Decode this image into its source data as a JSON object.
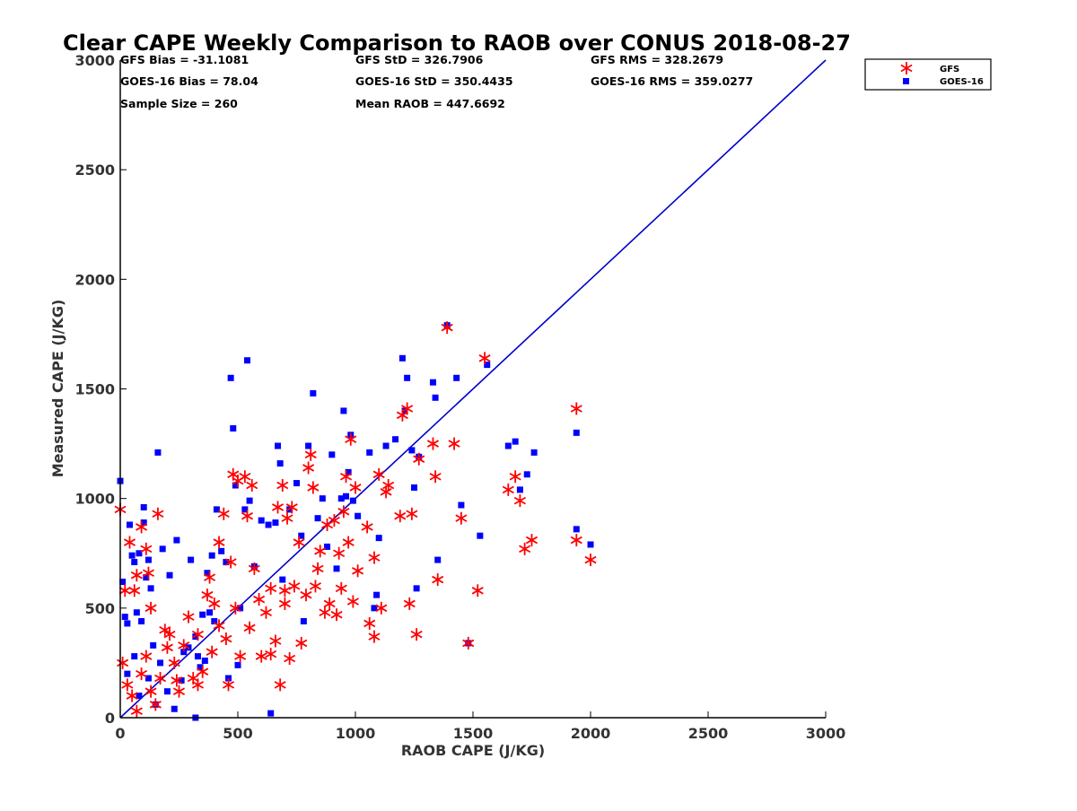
{
  "chart_data": {
    "type": "scatter",
    "title": "Clear CAPE Weekly Comparison to RAOB over CONUS 2018-08-27",
    "xlabel": "RAOB CAPE (J/KG)",
    "ylabel": "Measured CAPE (J/KG)",
    "xlim": [
      0,
      3000
    ],
    "ylim": [
      0,
      3000
    ],
    "xticks": [
      "0",
      "500",
      "1000",
      "1500",
      "2000",
      "2500",
      "3000"
    ],
    "yticks": [
      "0",
      "500",
      "1000",
      "1500",
      "2000",
      "2500",
      "3000"
    ],
    "grid": false,
    "legend_position": "top-right",
    "stats": [
      "GFS Bias = -31.1081",
      "GFS StD = 326.7906",
      "GFS RMS = 328.2679",
      "GOES-16 Bias = 78.04",
      "GOES-16 StD = 350.4435",
      "GOES-16 RMS = 359.0277",
      "Sample Size = 260",
      "Mean RAOB = 447.6692"
    ],
    "reference_line": {
      "x": [
        0,
        3000
      ],
      "y": [
        0,
        3000
      ],
      "color": "#0000cc"
    },
    "series": [
      {
        "name": "GFS",
        "marker": "asterisk",
        "color": "#ff0000",
        "points": [
          [
            0,
            950
          ],
          [
            20,
            580
          ],
          [
            40,
            800
          ],
          [
            60,
            580
          ],
          [
            70,
            650
          ],
          [
            90,
            870
          ],
          [
            110,
            770
          ],
          [
            120,
            660
          ],
          [
            130,
            500
          ],
          [
            160,
            930
          ],
          [
            10,
            250
          ],
          [
            30,
            150
          ],
          [
            50,
            100
          ],
          [
            70,
            30
          ],
          [
            90,
            200
          ],
          [
            110,
            280
          ],
          [
            130,
            120
          ],
          [
            150,
            60
          ],
          [
            170,
            180
          ],
          [
            190,
            400
          ],
          [
            210,
            380
          ],
          [
            230,
            250
          ],
          [
            250,
            120
          ],
          [
            270,
            330
          ],
          [
            290,
            460
          ],
          [
            310,
            180
          ],
          [
            330,
            150
          ],
          [
            350,
            210
          ],
          [
            370,
            560
          ],
          [
            390,
            300
          ],
          [
            400,
            520
          ],
          [
            420,
            800
          ],
          [
            440,
            930
          ],
          [
            450,
            360
          ],
          [
            460,
            150
          ],
          [
            470,
            710
          ],
          [
            480,
            1110
          ],
          [
            490,
            500
          ],
          [
            500,
            1080
          ],
          [
            510,
            280
          ],
          [
            530,
            1100
          ],
          [
            540,
            920
          ],
          [
            550,
            410
          ],
          [
            570,
            680
          ],
          [
            590,
            540
          ],
          [
            600,
            280
          ],
          [
            620,
            480
          ],
          [
            640,
            290
          ],
          [
            660,
            350
          ],
          [
            670,
            960
          ],
          [
            680,
            150
          ],
          [
            690,
            1060
          ],
          [
            700,
            580
          ],
          [
            710,
            910
          ],
          [
            720,
            270
          ],
          [
            730,
            960
          ],
          [
            740,
            600
          ],
          [
            760,
            800
          ],
          [
            770,
            340
          ],
          [
            790,
            560
          ],
          [
            800,
            1140
          ],
          [
            810,
            1200
          ],
          [
            820,
            1050
          ],
          [
            830,
            600
          ],
          [
            840,
            680
          ],
          [
            850,
            760
          ],
          [
            870,
            480
          ],
          [
            880,
            880
          ],
          [
            890,
            520
          ],
          [
            910,
            900
          ],
          [
            920,
            470
          ],
          [
            930,
            750
          ],
          [
            940,
            590
          ],
          [
            950,
            940
          ],
          [
            960,
            1100
          ],
          [
            970,
            800
          ],
          [
            980,
            1270
          ],
          [
            990,
            530
          ],
          [
            1000,
            1050
          ],
          [
            1010,
            670
          ],
          [
            1050,
            870
          ],
          [
            1060,
            430
          ],
          [
            1080,
            730
          ],
          [
            1080,
            370
          ],
          [
            1100,
            1110
          ],
          [
            1110,
            500
          ],
          [
            1130,
            1030
          ],
          [
            1140,
            1060
          ],
          [
            1190,
            920
          ],
          [
            1200,
            1380
          ],
          [
            1220,
            1410
          ],
          [
            1230,
            520
          ],
          [
            1240,
            930
          ],
          [
            1260,
            380
          ],
          [
            1270,
            1180
          ],
          [
            1330,
            1250
          ],
          [
            1340,
            1100
          ],
          [
            1350,
            630
          ],
          [
            1390,
            1780
          ],
          [
            1420,
            1250
          ],
          [
            1450,
            910
          ],
          [
            1480,
            340
          ],
          [
            1520,
            580
          ],
          [
            1550,
            1640
          ],
          [
            1650,
            1040
          ],
          [
            1680,
            1100
          ],
          [
            1700,
            990
          ],
          [
            1720,
            770
          ],
          [
            1750,
            810
          ],
          [
            1940,
            1410
          ],
          [
            1940,
            810
          ],
          [
            2000,
            720
          ],
          [
            200,
            320
          ],
          [
            240,
            170
          ],
          [
            330,
            380
          ],
          [
            380,
            640
          ],
          [
            420,
            420
          ],
          [
            560,
            1060
          ],
          [
            640,
            590
          ],
          [
            700,
            520
          ]
        ]
      },
      {
        "name": "GOES-16",
        "marker": "square",
        "color": "#0000ff",
        "points": [
          [
            0,
            1080
          ],
          [
            10,
            620
          ],
          [
            20,
            460
          ],
          [
            30,
            430
          ],
          [
            40,
            880
          ],
          [
            50,
            740
          ],
          [
            60,
            710
          ],
          [
            70,
            480
          ],
          [
            80,
            750
          ],
          [
            90,
            440
          ],
          [
            100,
            890
          ],
          [
            100,
            960
          ],
          [
            110,
            640
          ],
          [
            120,
            720
          ],
          [
            130,
            590
          ],
          [
            140,
            330
          ],
          [
            160,
            1210
          ],
          [
            180,
            770
          ],
          [
            210,
            650
          ],
          [
            240,
            810
          ],
          [
            270,
            300
          ],
          [
            300,
            720
          ],
          [
            320,
            370
          ],
          [
            330,
            280
          ],
          [
            350,
            470
          ],
          [
            360,
            260
          ],
          [
            370,
            660
          ],
          [
            390,
            740
          ],
          [
            400,
            440
          ],
          [
            410,
            950
          ],
          [
            430,
            760
          ],
          [
            450,
            710
          ],
          [
            460,
            180
          ],
          [
            470,
            1550
          ],
          [
            480,
            1320
          ],
          [
            490,
            1060
          ],
          [
            500,
            240
          ],
          [
            510,
            500
          ],
          [
            530,
            950
          ],
          [
            540,
            1630
          ],
          [
            550,
            990
          ],
          [
            570,
            690
          ],
          [
            600,
            900
          ],
          [
            630,
            880
          ],
          [
            640,
            20
          ],
          [
            660,
            890
          ],
          [
            670,
            1240
          ],
          [
            680,
            1160
          ],
          [
            690,
            630
          ],
          [
            720,
            950
          ],
          [
            750,
            1070
          ],
          [
            770,
            830
          ],
          [
            780,
            440
          ],
          [
            800,
            1240
          ],
          [
            820,
            1480
          ],
          [
            840,
            910
          ],
          [
            860,
            1000
          ],
          [
            880,
            780
          ],
          [
            900,
            1200
          ],
          [
            920,
            680
          ],
          [
            940,
            1000
          ],
          [
            950,
            1400
          ],
          [
            960,
            1010
          ],
          [
            970,
            1120
          ],
          [
            980,
            1290
          ],
          [
            990,
            990
          ],
          [
            1010,
            920
          ],
          [
            1060,
            1210
          ],
          [
            1080,
            500
          ],
          [
            1090,
            560
          ],
          [
            1100,
            820
          ],
          [
            1130,
            1240
          ],
          [
            1170,
            1270
          ],
          [
            1200,
            1640
          ],
          [
            1210,
            1400
          ],
          [
            1220,
            1550
          ],
          [
            1240,
            1220
          ],
          [
            1250,
            1050
          ],
          [
            1260,
            590
          ],
          [
            1270,
            1190
          ],
          [
            1330,
            1530
          ],
          [
            1340,
            1460
          ],
          [
            1350,
            720
          ],
          [
            1390,
            1790
          ],
          [
            1430,
            1550
          ],
          [
            1450,
            970
          ],
          [
            1480,
            340
          ],
          [
            1530,
            830
          ],
          [
            1560,
            1610
          ],
          [
            1650,
            1240
          ],
          [
            1680,
            1260
          ],
          [
            1700,
            1040
          ],
          [
            1730,
            1110
          ],
          [
            1760,
            1210
          ],
          [
            1940,
            1300
          ],
          [
            1940,
            860
          ],
          [
            2000,
            790
          ],
          [
            30,
            200
          ],
          [
            60,
            280
          ],
          [
            80,
            100
          ],
          [
            120,
            180
          ],
          [
            150,
            60
          ],
          [
            170,
            250
          ],
          [
            200,
            120
          ],
          [
            230,
            40
          ],
          [
            260,
            170
          ],
          [
            290,
            320
          ],
          [
            320,
            0
          ],
          [
            340,
            230
          ],
          [
            380,
            480
          ]
        ]
      }
    ]
  }
}
